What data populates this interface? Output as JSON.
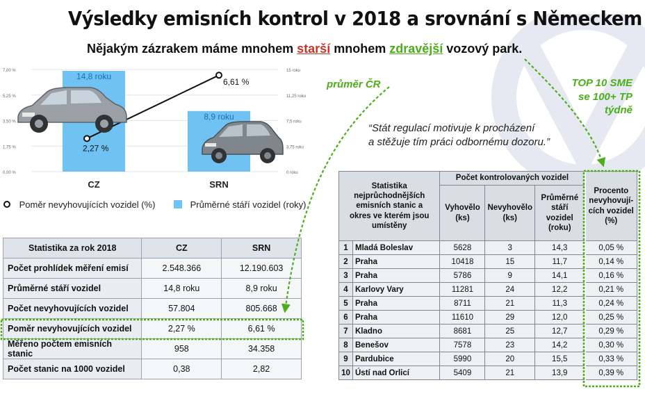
{
  "title": "Výsledky emisních kontrol v 2018 a srovnání s Německem",
  "subtitle": {
    "part1": "Nějakým zázrakem máme mnohem ",
    "red": "starší",
    "part2": " mnohem ",
    "green": "zdravější",
    "part3": " vozový park."
  },
  "annotations": {
    "cr": "průměr ČR",
    "top1": "TOP 10 SME",
    "top2": "se 100+ TP",
    "top3": "týdně"
  },
  "quote": {
    "line1": "“Stát regulací motivuje k procházení",
    "line2": "a stěžuje tím práci odbornému dozoru.”"
  },
  "chart_data": {
    "type": "bar",
    "categories": [
      "CZ",
      "SRN"
    ],
    "series": [
      {
        "name": "Průměrné stáří vozidel (roky)",
        "kind": "bar",
        "axis": "right",
        "values": [
          14.8,
          8.9
        ],
        "labels": [
          "14,8 roku",
          "8,9 roku"
        ],
        "color": "#6fc2f2"
      },
      {
        "name": "Poměr nevyhovujících vozidel (%)",
        "kind": "line",
        "axis": "left",
        "values": [
          2.27,
          6.61
        ],
        "labels": [
          "2,27 %",
          "6,61 %"
        ],
        "color": "#111111"
      }
    ],
    "left_axis": {
      "ticks": [
        "0,00 %",
        "1,75 %",
        "3,50 %",
        "5,25 %",
        "7,00 %"
      ],
      "range": [
        0,
        7
      ]
    },
    "right_axis": {
      "ticks": [
        "0 roku",
        "3,75 roku",
        "7,5 roku",
        "11,25 roku",
        "15 roku"
      ],
      "range": [
        0,
        15
      ]
    },
    "grid": true,
    "legend_position": "bottom"
  },
  "left_table": {
    "headers": [
      "Statistika za rok 2018",
      "CZ",
      "SRN"
    ],
    "rows": [
      [
        "Počet prohlídek měření emisí",
        "2.548.366",
        "12.190.603"
      ],
      [
        "Průměrné stáří vozidel",
        "14,8 roku",
        "8,9 roku"
      ],
      [
        "Počet nevyhovujících vozidel",
        "57.804",
        "805.668"
      ],
      [
        "Poměr nevyhovujících vozidel",
        "2,27 %",
        "6,61 %"
      ],
      [
        "Měřeno počtem emisních stanic",
        "958",
        "34.358"
      ],
      [
        "Počet stanic na 1000 vozidel",
        "0,38",
        "2,82"
      ]
    ]
  },
  "right_table": {
    "header_main": "Statistika nejprůchodnějších emisních stanic a okres ve kterém jsou umístěny",
    "header_group": "Počet kontrolovaných vozidel",
    "header_pass": "Vyhovělo (ks)",
    "header_fail": "Nevyhovělo (ks)",
    "header_age": "Průměrné stáří vozidel (roku)",
    "header_pct": "Procento nevyhovují-cích vozidel (%)",
    "rows": [
      [
        "1",
        "Mladá Boleslav",
        "5628",
        "3",
        "14,3",
        "0,05 %"
      ],
      [
        "2",
        "Praha",
        "10418",
        "15",
        "11,7",
        "0,14 %"
      ],
      [
        "3",
        "Praha",
        "5786",
        "9",
        "14,1",
        "0,16 %"
      ],
      [
        "4",
        "Karlovy Vary",
        "11281",
        "24",
        "12,2",
        "0,21 %"
      ],
      [
        "5",
        "Praha",
        "8711",
        "21",
        "11,3",
        "0,24 %"
      ],
      [
        "6",
        "Praha",
        "11610",
        "29",
        "12,0",
        "0,25 %"
      ],
      [
        "7",
        "Kladno",
        "8681",
        "25",
        "12,7",
        "0,29 %"
      ],
      [
        "8",
        "Benešov",
        "7578",
        "23",
        "14,2",
        "0,30 %"
      ],
      [
        "9",
        "Pardubice",
        "5990",
        "20",
        "15,5",
        "0,33 %"
      ],
      [
        "10",
        "Ústí nad Orlicí",
        "5409",
        "21",
        "13,9",
        "0,39 %"
      ]
    ]
  },
  "colors": {
    "accent_green": "#4caf1a",
    "accent_red": "#c0392b",
    "bar": "#6fc2f2"
  }
}
